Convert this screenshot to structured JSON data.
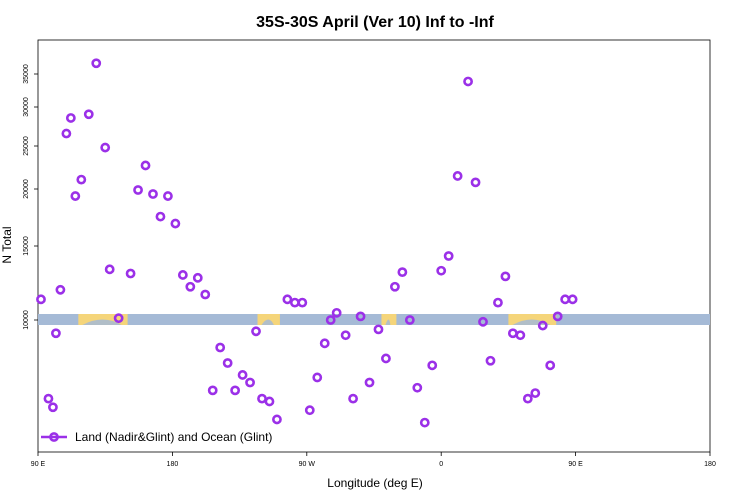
{
  "chart_data": {
    "type": "scatter",
    "title": "35S-30S April (Ver 10)   Inf to -Inf",
    "xlabel": "Longitude (deg E)",
    "ylabel": "N Total",
    "x_axis": {
      "range": [
        90,
        450
      ],
      "ticks": [
        90,
        180,
        270,
        360,
        450
      ],
      "tick_labels": [
        "90 E",
        "180",
        "90 W",
        "0",
        "90 E",
        "180"
      ],
      "tick_positions": [
        90,
        180,
        270,
        360,
        450,
        540
      ]
    },
    "y_axis": {
      "scale": "log",
      "ticks": [
        10000,
        15000,
        20000,
        25000,
        30000,
        35000
      ],
      "tick_labels": [
        "10000",
        "15000",
        "20000",
        "25000",
        "30000",
        "35000"
      ],
      "note": "tick spacing approximately log-scaled"
    },
    "grid": false,
    "legend": {
      "placement": "bottom-left",
      "entries": [
        {
          "label": "Land (Nadir&Glint) and Ocean (Glint)",
          "color": "#9b30e8"
        }
      ]
    },
    "land_ocean_band": {
      "y": 10000,
      "ocean_color": "#a5bad6",
      "land_color": "#f5d57a",
      "land_segments_lon": [
        [
          117,
          150
        ],
        [
          237,
          252
        ],
        [
          320,
          330
        ],
        [
          405,
          437
        ]
      ]
    },
    "series": [
      {
        "marker": "open-circle",
        "color": "#9b30e8",
        "points": [
          [
            92,
            11200
          ],
          [
            97,
            6500
          ],
          [
            100,
            6200
          ],
          [
            102,
            9300
          ],
          [
            105,
            11800
          ],
          [
            109,
            26500
          ],
          [
            112,
            28500
          ],
          [
            115,
            19300
          ],
          [
            119,
            21000
          ],
          [
            124,
            29000
          ],
          [
            129,
            36800
          ],
          [
            135,
            24800
          ],
          [
            138,
            13200
          ],
          [
            144,
            10100
          ],
          [
            152,
            12900
          ],
          [
            157,
            19900
          ],
          [
            162,
            22600
          ],
          [
            167,
            19500
          ],
          [
            172,
            17400
          ],
          [
            177,
            19300
          ],
          [
            182,
            16800
          ],
          [
            187,
            12800
          ],
          [
            192,
            12000
          ],
          [
            197,
            12600
          ],
          [
            202,
            11500
          ],
          [
            207,
            6800
          ],
          [
            212,
            8600
          ],
          [
            217,
            7900
          ],
          [
            222,
            6800
          ],
          [
            227,
            7400
          ],
          [
            232,
            7100
          ],
          [
            236,
            9400
          ],
          [
            240,
            6500
          ],
          [
            245,
            6400
          ],
          [
            250,
            5800
          ],
          [
            257,
            11200
          ],
          [
            262,
            11000
          ],
          [
            267,
            11000
          ],
          [
            272,
            6100
          ],
          [
            277,
            7300
          ],
          [
            282,
            8800
          ],
          [
            286,
            10000
          ],
          [
            290,
            10400
          ],
          [
            296,
            9200
          ],
          [
            301,
            6500
          ],
          [
            306,
            10200
          ],
          [
            312,
            7100
          ],
          [
            318,
            9500
          ],
          [
            323,
            8100
          ],
          [
            329,
            12000
          ],
          [
            334,
            13000
          ],
          [
            339,
            10000
          ],
          [
            344,
            6900
          ],
          [
            349,
            5700
          ],
          [
            354,
            7800
          ],
          [
            360,
            13100
          ],
          [
            365,
            14200
          ],
          [
            371,
            21400
          ],
          [
            378,
            33800
          ],
          [
            383,
            20700
          ],
          [
            388,
            9900
          ],
          [
            393,
            8000
          ],
          [
            398,
            11000
          ],
          [
            403,
            12700
          ],
          [
            408,
            9300
          ],
          [
            413,
            9200
          ],
          [
            418,
            6500
          ],
          [
            423,
            6700
          ],
          [
            428,
            9700
          ],
          [
            433,
            7800
          ],
          [
            438,
            10200
          ],
          [
            443,
            11200
          ],
          [
            448,
            11200
          ]
        ]
      }
    ]
  }
}
